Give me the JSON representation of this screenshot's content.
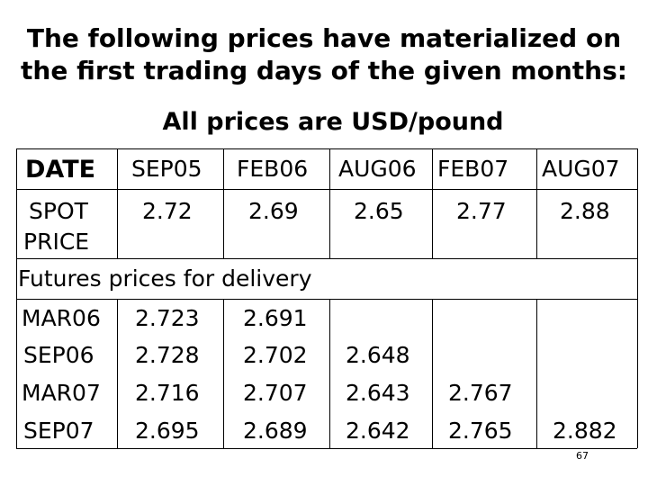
{
  "title_line1": "The following prices have materialized on",
  "title_line2": "the first trading days of the given months:",
  "subtitle": "All prices are USD/pound",
  "table": {
    "date_label": "DATE",
    "columns": [
      "SEP05",
      "FEB06",
      "AUG06",
      "FEB07",
      "AUG07"
    ],
    "spot_label_line1": "SPOT",
    "spot_label_line2": "PRICE",
    "spot_values": [
      "2.72",
      "2.69",
      "2.65",
      "2.77",
      "2.88"
    ],
    "futures_label": "Futures prices for delivery",
    "futures_rows": [
      {
        "label": "MAR06",
        "values": [
          "2.723",
          "2.691",
          "",
          "",
          ""
        ]
      },
      {
        "label": "SEP06",
        "values": [
          "2.728",
          "2.702",
          "2.648",
          "",
          ""
        ]
      },
      {
        "label": "MAR07",
        "values": [
          "2.716",
          "2.707",
          "2.643",
          "2.767",
          ""
        ]
      },
      {
        "label": "SEP07",
        "values": [
          "2.695",
          "2.689",
          "2.642",
          "2.765",
          "2.882"
        ]
      }
    ]
  },
  "page_number": "67"
}
